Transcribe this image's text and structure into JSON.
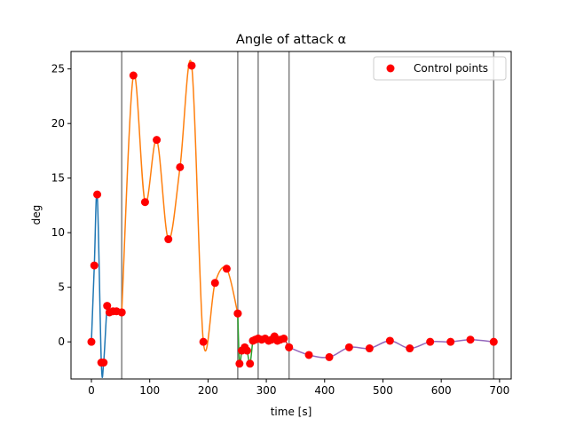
{
  "chart_data": {
    "type": "line",
    "title": "Angle of attack α",
    "xlabel": "time [s]",
    "ylabel": "deg",
    "xlim": [
      -35,
      720
    ],
    "ylim": [
      -3.4,
      26.6
    ],
    "xticks": [
      0,
      100,
      200,
      300,
      400,
      500,
      600,
      700
    ],
    "yticks": [
      0,
      5,
      10,
      15,
      20,
      25
    ],
    "grid": false,
    "legend": {
      "position": "top-right",
      "entries": [
        "Control points"
      ]
    },
    "vlines": [
      52,
      251,
      286,
      339,
      690
    ],
    "colors": {
      "control_points": "#ff0000",
      "vlines": "#808080",
      "segments": [
        "#1f77b4",
        "#ff7f0e",
        "#2ca02c",
        "#d62728",
        "#9467bd"
      ]
    },
    "segments": [
      {
        "x": [
          0,
          5,
          10,
          17,
          21,
          27,
          31,
          37,
          43,
          52
        ],
        "y": [
          0,
          7.0,
          13.5,
          -1.9,
          -1.9,
          3.3,
          2.7,
          2.8,
          2.8,
          2.7
        ]
      },
      {
        "x": [
          52,
          72,
          92,
          112,
          132,
          152,
          172,
          192,
          212,
          232,
          251
        ],
        "y": [
          2.7,
          24.4,
          12.8,
          18.5,
          9.4,
          16.0,
          25.3,
          0.0,
          5.4,
          6.7,
          2.6
        ]
      },
      {
        "x": [
          251,
          254,
          258,
          263,
          267,
          272,
          277,
          281,
          286
        ],
        "y": [
          2.6,
          -2.0,
          -0.8,
          -0.5,
          -0.8,
          -2.0,
          0.1,
          0.2,
          0.3
        ]
      },
      {
        "x": [
          286,
          292,
          298,
          304,
          309,
          314,
          319,
          324,
          330,
          339
        ],
        "y": [
          0.3,
          0.2,
          0.3,
          0.1,
          0.2,
          0.5,
          0.1,
          0.2,
          0.3,
          -0.5
        ]
      },
      {
        "x": [
          339,
          373,
          408,
          442,
          477,
          512,
          546,
          581,
          616,
          650,
          690
        ],
        "y": [
          -0.5,
          -1.2,
          -1.4,
          -0.5,
          -0.6,
          0.1,
          -0.6,
          0.0,
          0.0,
          0.2,
          0.0
        ]
      }
    ]
  }
}
